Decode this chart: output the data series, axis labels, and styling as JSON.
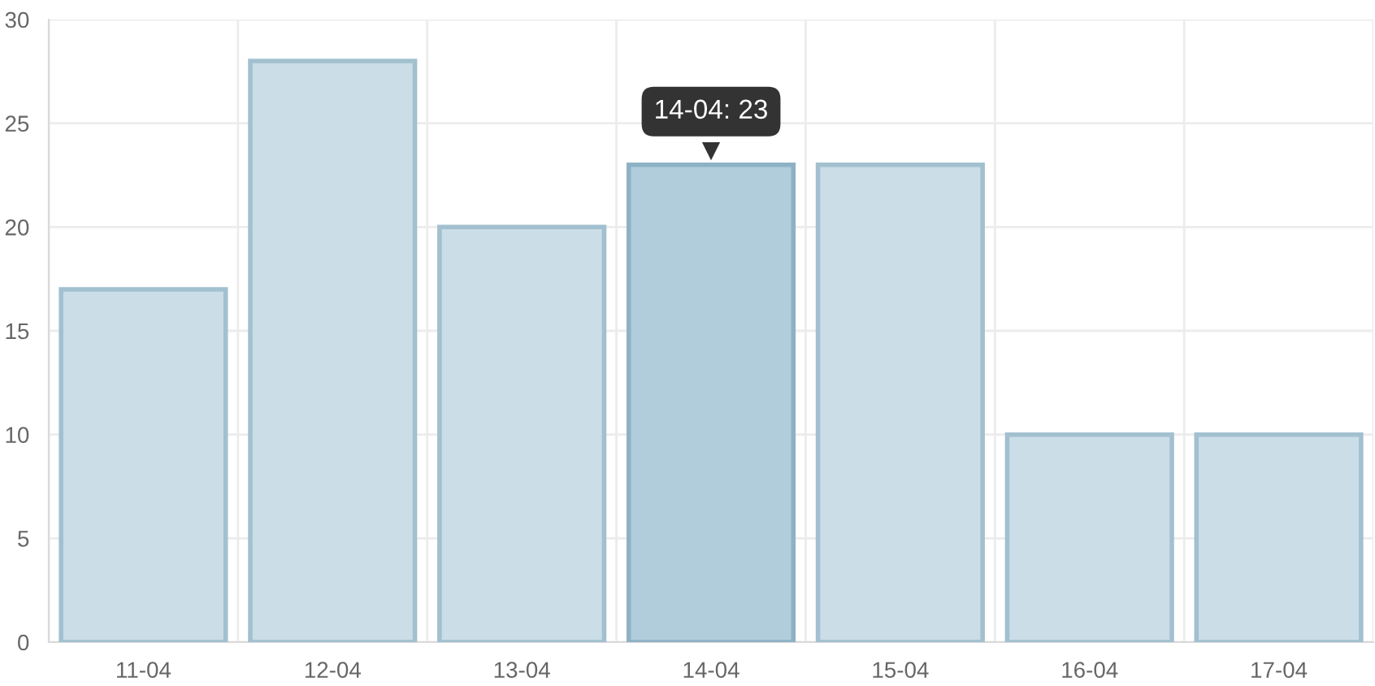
{
  "chart_data": {
    "type": "bar",
    "categories": [
      "11-04",
      "12-04",
      "13-04",
      "14-04",
      "15-04",
      "16-04",
      "17-04"
    ],
    "values": [
      17,
      28,
      20,
      23,
      23,
      10,
      10
    ],
    "colors": [
      "#cbdde6",
      "#cbdde6",
      "#cbdde6",
      "#b1cddb",
      "#cbdde6",
      "#cbdde6",
      "#cbdde6"
    ],
    "ylim": [
      0,
      30
    ],
    "yticks": [
      0,
      5,
      10,
      15,
      20,
      25,
      30
    ],
    "grid": true,
    "annotations": [
      {
        "text": "14-04: 23",
        "x": "14-04",
        "y": 23
      }
    ]
  }
}
